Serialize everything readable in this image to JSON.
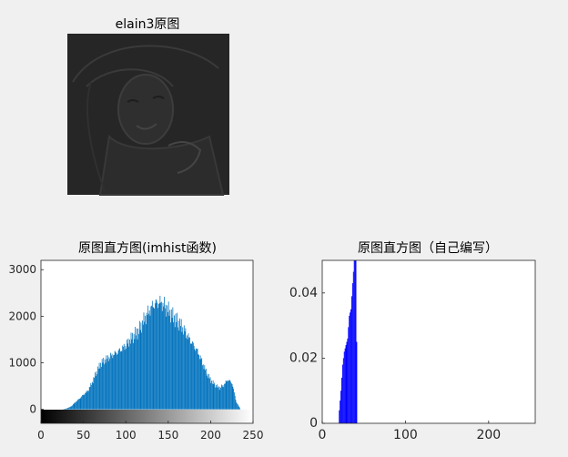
{
  "figure": {
    "title1": "elain3原图",
    "title2": "原图直方图(imhist函数)",
    "title3": "原图直方图（自己编写）"
  },
  "chart_data": [
    {
      "type": "image",
      "title": "elain3原图",
      "note": "dark, low-contrast grayscale photo (portrait of a woman with a hat)"
    },
    {
      "type": "bar",
      "title": "原图直方图(imhist函数)",
      "xlim": [
        0,
        250
      ],
      "ylim": [
        -300,
        3200
      ],
      "xticks": [
        0,
        50,
        100,
        150,
        200,
        250
      ],
      "yticks": [
        0,
        1000,
        2000,
        3000
      ],
      "bar_color": "#0072bd",
      "colorbar": "grayscale gradient 0 → 255 under the x-axis",
      "x": [
        25,
        30,
        35,
        40,
        45,
        50,
        55,
        60,
        65,
        70,
        75,
        80,
        85,
        90,
        95,
        100,
        105,
        110,
        115,
        120,
        125,
        130,
        135,
        140,
        145,
        150,
        155,
        160,
        165,
        170,
        175,
        180,
        185,
        190,
        195,
        200,
        205,
        210,
        215,
        220,
        225,
        230,
        235,
        240,
        245,
        250
      ],
      "y": [
        0,
        20,
        60,
        150,
        230,
        320,
        400,
        580,
        800,
        980,
        1060,
        1120,
        1180,
        1230,
        1300,
        1380,
        1500,
        1600,
        1700,
        1880,
        2050,
        2200,
        2280,
        2300,
        2240,
        2120,
        2000,
        1900,
        1800,
        1650,
        1500,
        1360,
        1220,
        1000,
        780,
        620,
        520,
        460,
        520,
        640,
        560,
        150,
        0,
        0,
        0,
        0
      ]
    },
    {
      "type": "bar",
      "title": "原图直方图（自己编写）",
      "xlim": [
        0,
        256
      ],
      "ylim": [
        0,
        0.05
      ],
      "xticks": [
        0,
        100,
        200
      ],
      "yticks": [
        0,
        0.02,
        0.04
      ],
      "bar_color": "#0000ff",
      "x": [
        20,
        22,
        24,
        26,
        28,
        30,
        32,
        34,
        36,
        38,
        40,
        42
      ],
      "y": [
        0.004,
        0.01,
        0.018,
        0.022,
        0.024,
        0.026,
        0.033,
        0.035,
        0.043,
        0.05,
        0.05,
        0.0
      ]
    }
  ]
}
